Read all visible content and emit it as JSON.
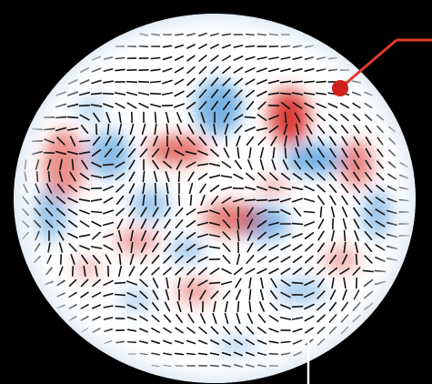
{
  "scene": {
    "background_color": "#000000",
    "disk_color": "#ffffff",
    "hot_color": "#d9342b",
    "cold_color": "#3d8fd6",
    "stick_color": "#111111",
    "pointer_color": "#e23a2e",
    "marker_color": "#d0201c",
    "callout_color": "#ffffff"
  }
}
